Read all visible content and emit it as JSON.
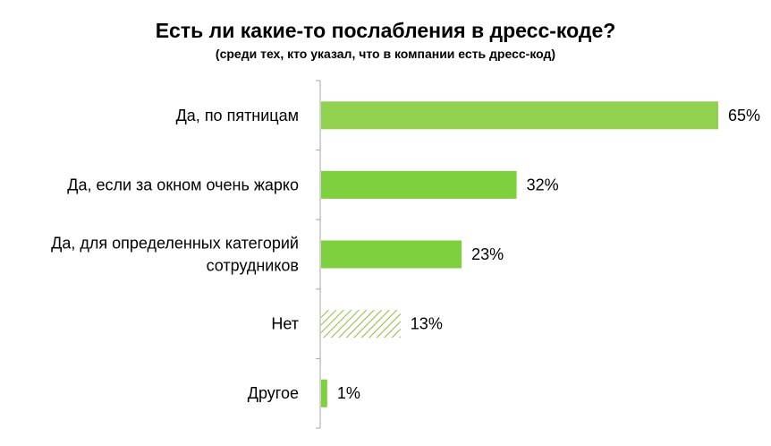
{
  "chart_data": {
    "type": "bar",
    "orientation": "horizontal",
    "title": "Есть ли какие-то послабления в дресс-коде?",
    "subtitle": "(среди тех, кто указал, что в компании есть дресс-код)",
    "categories": [
      "Да, по пятницам",
      "Да, если за окном очень жарко",
      "Да, для определенных категорий сотрудников",
      "Нет",
      "Другое"
    ],
    "category_lines": [
      [
        "Да, по пятницам"
      ],
      [
        "Да, если за окном очень жарко"
      ],
      [
        "Да, для определенных категорий",
        "сотрудников"
      ],
      [
        "Нет"
      ],
      [
        "Другое"
      ]
    ],
    "values": [
      65,
      32,
      23,
      13,
      1
    ],
    "value_labels": [
      "65%",
      "32%",
      "23%",
      "13%",
      "1%"
    ],
    "bar_styles": [
      "solid",
      "solid",
      "solid",
      "hatched",
      "solid"
    ],
    "xlim": [
      0,
      65
    ],
    "grid": false,
    "legend": "none",
    "colors": {
      "bar": [
        "#92d050",
        "#7ed03e",
        "#7ed03e",
        "#8fbc3f",
        "#7ed03e"
      ],
      "axis": "#a6a6a6"
    }
  }
}
